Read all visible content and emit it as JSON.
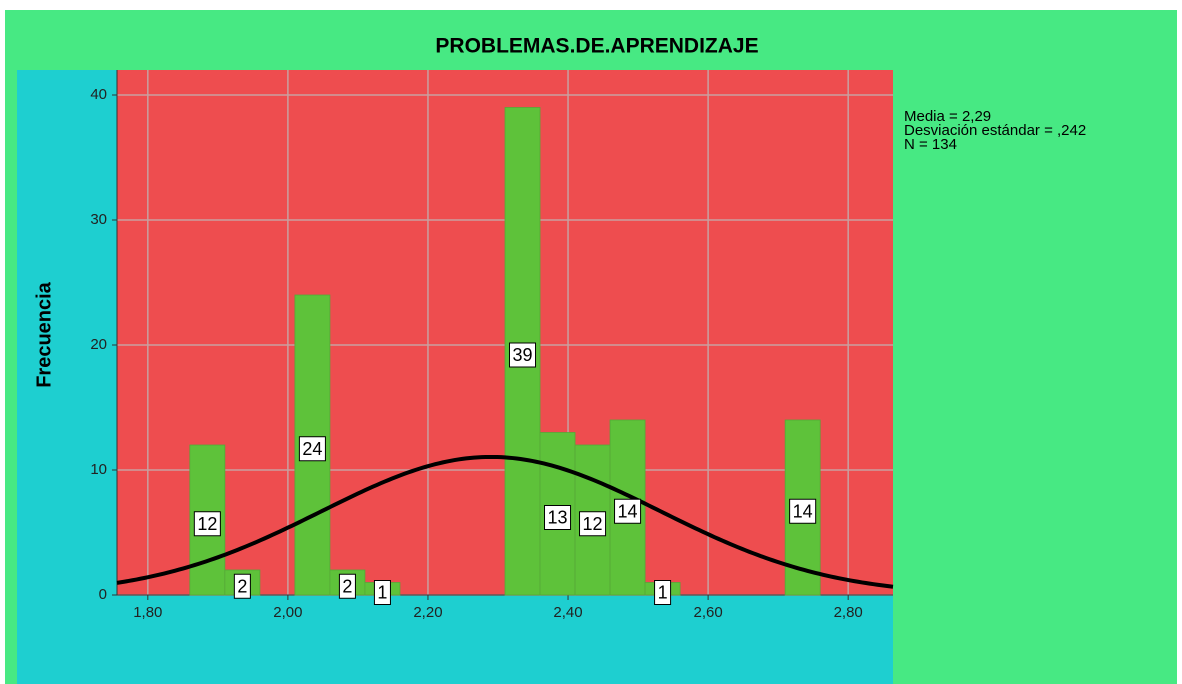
{
  "chart_data": {
    "type": "histogram",
    "title": "PROBLEMAS.DE.APRENDIZAJE",
    "y_label": "Frecuencia",
    "bins": [
      1.86,
      1.91,
      1.96,
      2.01,
      2.06,
      2.11,
      2.16,
      2.21,
      2.26,
      2.31,
      2.36,
      2.41,
      2.46,
      2.51,
      2.56,
      2.61,
      2.66,
      2.71,
      2.76
    ],
    "values": [
      12,
      2,
      0,
      24,
      2,
      1,
      0,
      0,
      0,
      39,
      13,
      12,
      14,
      1,
      0,
      0,
      0,
      14
    ],
    "color": "#5ec23a",
    "xlim": [
      1.756,
      2.864
    ],
    "ylim": [
      0,
      42
    ],
    "xticks": [
      {
        "value": 1.8,
        "label": "1,80"
      },
      {
        "value": 2.0,
        "label": "2,00"
      },
      {
        "value": 2.2,
        "label": "2,20"
      },
      {
        "value": 2.4,
        "label": "2,40"
      },
      {
        "value": 2.6,
        "label": "2,60"
      },
      {
        "value": 2.8,
        "label": "2,80"
      }
    ],
    "yticks": [
      0,
      10,
      20,
      30,
      40
    ],
    "grid": true,
    "normal_curve": {
      "mean": 2.29,
      "sd": 0.242,
      "n": 134,
      "color": "#000000"
    },
    "annotations": [
      "Media = 2,29",
      "Desviación estándar = ,242",
      "N = 134"
    ]
  }
}
